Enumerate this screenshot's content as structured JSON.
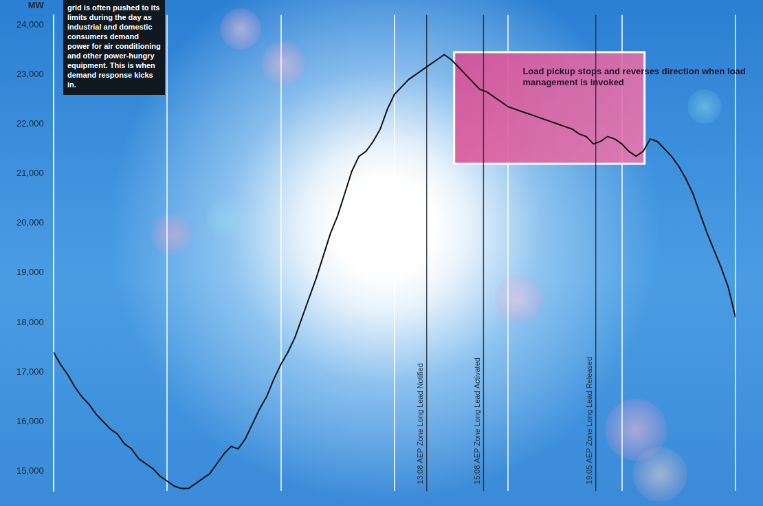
{
  "chart_data": {
    "type": "line",
    "y_label": "MW",
    "annotation": "grid is often pushed to its limits during the day as industrial and domestic consumers demand power for air conditioning and other power-hungry equipment. This is when demand response kicks in.",
    "x": [
      0,
      0.25,
      0.5,
      0.75,
      1,
      1.25,
      1.5,
      1.75,
      2,
      2.25,
      2.5,
      2.75,
      3,
      3.25,
      3.5,
      3.75,
      4,
      4.25,
      4.5,
      4.75,
      5,
      5.25,
      5.5,
      5.75,
      6,
      6.25,
      6.5,
      6.75,
      7,
      7.25,
      7.5,
      7.75,
      8,
      8.25,
      8.5,
      8.75,
      9,
      9.25,
      9.5,
      9.75,
      10,
      10.25,
      10.5,
      10.75,
      11,
      11.25,
      11.5,
      11.75,
      12,
      12.25,
      12.5,
      12.75,
      13,
      13.25,
      13.5,
      13.75,
      14,
      14.25,
      14.5,
      14.75,
      15,
      15.25,
      15.5,
      15.75,
      16,
      16.25,
      16.5,
      16.75,
      17,
      17.25,
      17.5,
      17.75,
      18,
      18.25,
      18.5,
      18.75,
      19,
      19.25,
      19.5,
      19.75,
      20,
      20.25,
      20.5,
      20.75,
      21,
      21.25,
      21.5,
      21.75,
      22,
      22.25,
      22.5,
      22.75,
      23,
      23.25,
      23.5,
      23.75,
      24
    ],
    "values": [
      17400,
      17150,
      16950,
      16700,
      16500,
      16350,
      16150,
      16000,
      15850,
      15750,
      15550,
      15450,
      15250,
      15150,
      15050,
      14900,
      14800,
      14700,
      14650,
      14650,
      14750,
      14850,
      14950,
      15150,
      15350,
      15500,
      15450,
      15650,
      15950,
      16250,
      16500,
      16850,
      17150,
      17400,
      17700,
      18100,
      18500,
      18900,
      19350,
      19800,
      20150,
      20600,
      21050,
      21350,
      21450,
      21650,
      21900,
      22300,
      22600,
      22750,
      22900,
      23000,
      23100,
      23200,
      23300,
      23400,
      23300,
      23150,
      23000,
      22850,
      22700,
      22650,
      22550,
      22450,
      22350,
      22300,
      22250,
      22200,
      22150,
      22100,
      22050,
      22000,
      21950,
      21900,
      21800,
      21750,
      21600,
      21650,
      21750,
      21700,
      21600,
      21450,
      21350,
      21450,
      21700,
      21650,
      21500,
      21350,
      21150,
      20900,
      20600,
      20200,
      19800,
      19450,
      19100,
      18700,
      18100
    ],
    "color": "#111111",
    "xlim": [
      0,
      24
    ],
    "xticks": [
      0,
      4,
      8,
      12,
      16,
      20,
      24
    ],
    "ylim": [
      14600,
      24200
    ],
    "yticks": [
      {
        "value": 15000,
        "label": "15,000"
      },
      {
        "value": 16000,
        "label": "16,000"
      },
      {
        "value": 17000,
        "label": "17,000"
      },
      {
        "value": 18000,
        "label": "18,000"
      },
      {
        "value": 19000,
        "label": "19,000"
      },
      {
        "value": 20000,
        "label": "20,000"
      },
      {
        "value": 21000,
        "label": "21,000"
      },
      {
        "value": 22000,
        "label": "22,000"
      },
      {
        "value": 23000,
        "label": "23,000"
      },
      {
        "value": 24000,
        "label": "24,000"
      }
    ],
    "grid": true,
    "tick_labels": "y",
    "events": [
      {
        "x": 13.133,
        "label": "13:08 AEP Zone Long Lead Notified"
      },
      {
        "x": 15.133,
        "label": "15:08 AEP Zone Long Lead Activated"
      },
      {
        "x": 19.083,
        "label": "19:05 AEP Zone Long Lead Released"
      }
    ],
    "highlight": {
      "x": [
        14.1,
        20.8
      ],
      "y": [
        21200,
        23450
      ],
      "text": "Load pickup stops and reverses direction when load management is invoked"
    }
  }
}
